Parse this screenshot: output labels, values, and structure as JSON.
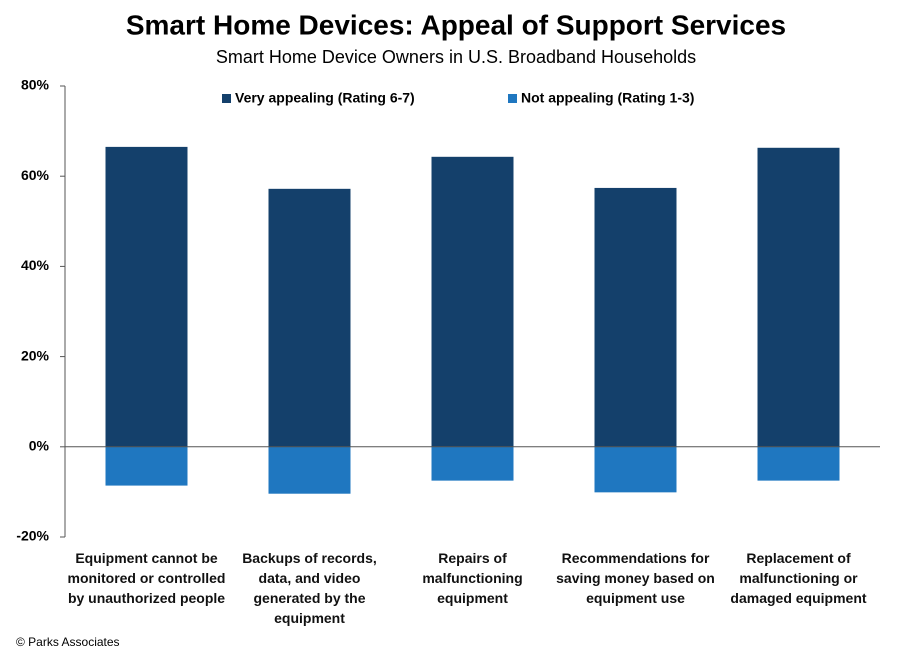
{
  "chart_data": {
    "type": "bar",
    "title": "Smart Home Devices: Appeal of Support Services",
    "subtitle": "Smart Home Device Owners in U.S. Broadband Households",
    "categories": [
      "Equipment cannot be monitored or controlled by unauthorized people",
      "Backups of records, data, and video generated by the equipment",
      "Repairs of malfunctioning equipment",
      "Recommendations for saving money based on equipment use",
      "Replacement of malfunctioning or damaged equipment"
    ],
    "series": [
      {
        "name": "Very appealing (Rating 6-7)",
        "color": "#14406b",
        "values": [
          66.5,
          57.2,
          64.3,
          57.4,
          66.3
        ]
      },
      {
        "name": "Not appealing (Rating 1-3)",
        "color": "#1f77c0",
        "values": [
          -8.6,
          -10.4,
          -7.5,
          -10.1,
          -7.5
        ]
      }
    ],
    "ylim": [
      -20,
      80
    ],
    "yticks": [
      {
        "value": -20,
        "label": "-20%"
      },
      {
        "value": 0,
        "label": "0%"
      },
      {
        "value": 20,
        "label": "20%"
      },
      {
        "value": 40,
        "label": "40%"
      },
      {
        "value": 60,
        "label": "60%"
      },
      {
        "value": 80,
        "label": "80%"
      }
    ],
    "legend": "top",
    "source": "© Parks Associates"
  }
}
